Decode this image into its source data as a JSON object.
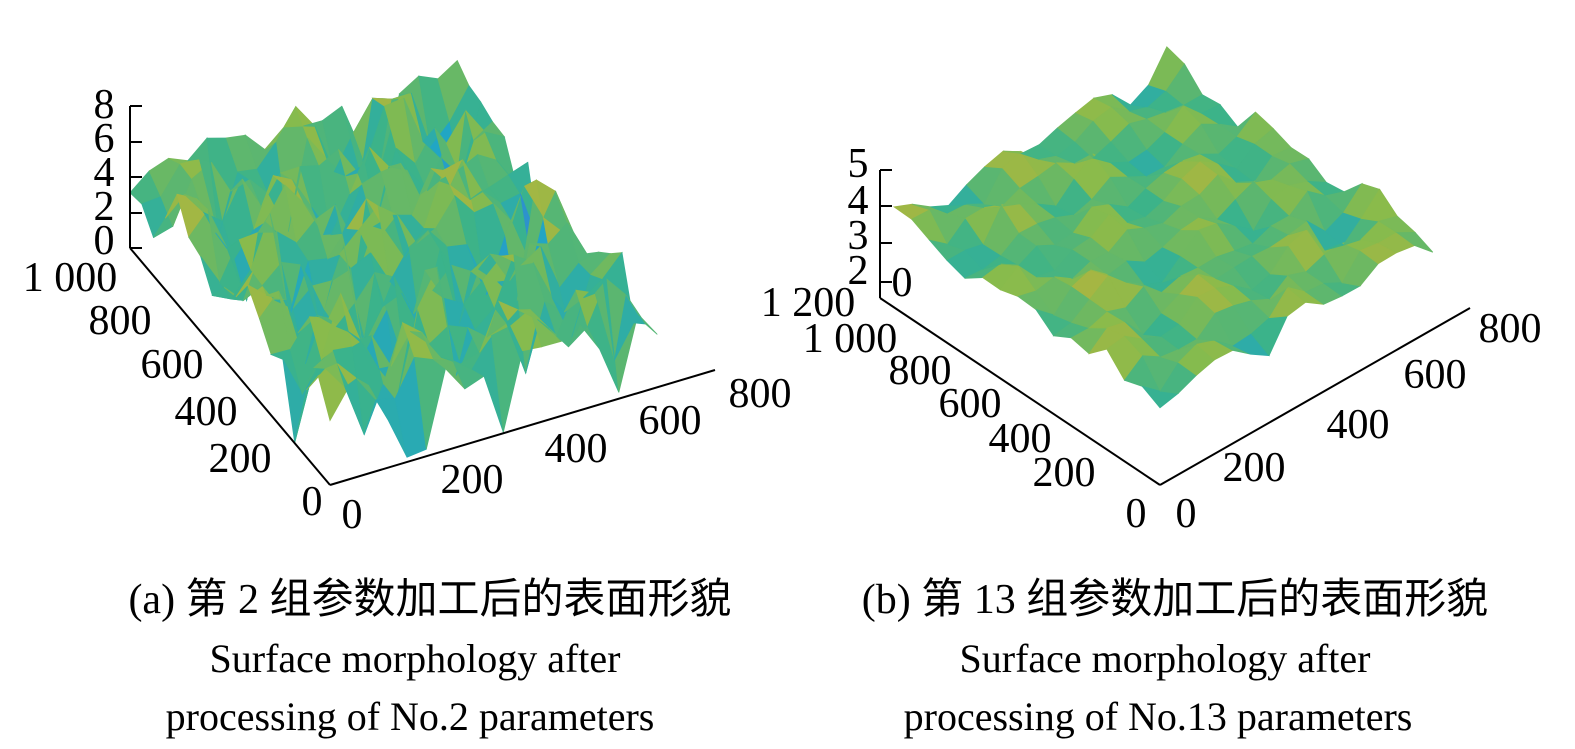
{
  "figure": {
    "panels": [
      {
        "caption_cn": "(a) 第 2 组参数加工后的表面形貌",
        "caption_en_line1": "Surface morphology after",
        "caption_en_line2": "processing of No.2 parameters"
      },
      {
        "caption_cn": "(b) 第 13 组参数加工后的表面形貌",
        "caption_en_line1": "Surface morphology after",
        "caption_en_line2": "processing of No.13 parameters"
      }
    ]
  },
  "chart_data": [
    {
      "type": "surface",
      "colormap": [
        "#3d78d6",
        "#21a6c4",
        "#3bb38a",
        "#88bb4c",
        "#c3b13a",
        "#e7a63a"
      ],
      "x_ticks": [
        "0",
        "200",
        "400",
        "600",
        "800"
      ],
      "y_ticks": [
        "0",
        "200",
        "400",
        "600",
        "800",
        "1 000"
      ],
      "z_ticks": [
        "0",
        "2",
        "4",
        "6",
        "8"
      ],
      "xlim": [
        0,
        800
      ],
      "ylim": [
        0,
        1000
      ],
      "zlim": [
        0,
        8
      ],
      "surface_z_range": [
        0,
        8
      ],
      "grid_resolution": 17,
      "grid": false
    },
    {
      "type": "surface",
      "colormap": [
        "#3d78d6",
        "#21a6c4",
        "#3bb38a",
        "#88bb4c",
        "#c3b13a",
        "#e7a63a"
      ],
      "x_ticks": [
        "0",
        "200",
        "400",
        "600",
        "800"
      ],
      "y_ticks": [
        "0",
        "200",
        "400",
        "600",
        "800",
        "1 000",
        "1 200"
      ],
      "z_ticks": [
        "0",
        "2",
        "3",
        "4",
        "5"
      ],
      "xlim": [
        0,
        800
      ],
      "ylim": [
        0,
        1200
      ],
      "zlim": [
        0,
        5
      ],
      "surface_z_range": [
        2.2,
        4.6
      ],
      "grid_resolution": 15,
      "grid": false
    }
  ]
}
